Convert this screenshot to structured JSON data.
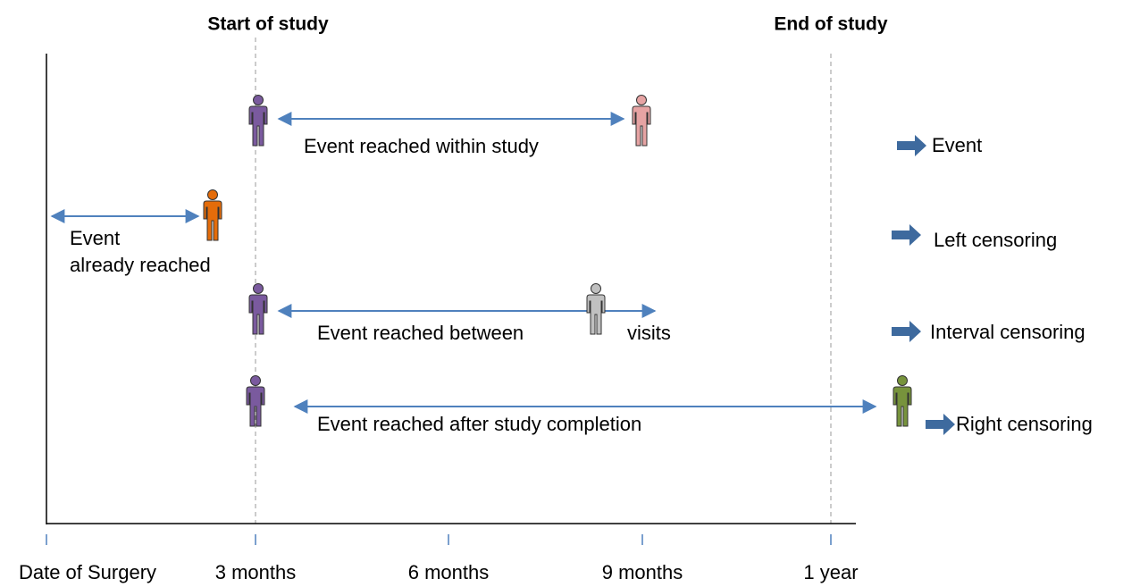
{
  "header": {
    "start": "Start of study",
    "end": "End of study"
  },
  "rows": [
    {
      "label": [
        "Event reached within study"
      ],
      "outcome": "Event"
    },
    {
      "label": [
        "Event",
        "already reached"
      ],
      "outcome": "Left censoring"
    },
    {
      "label": [
        "Event reached between",
        "visits"
      ],
      "outcome": "Interval censoring"
    },
    {
      "label": [
        "Event reached after study completion"
      ],
      "outcome": "Right censoring"
    }
  ],
  "axis": {
    "labels": [
      "Date of Surgery",
      "3 months",
      "6 months",
      "9 months",
      "1 year"
    ]
  }
}
